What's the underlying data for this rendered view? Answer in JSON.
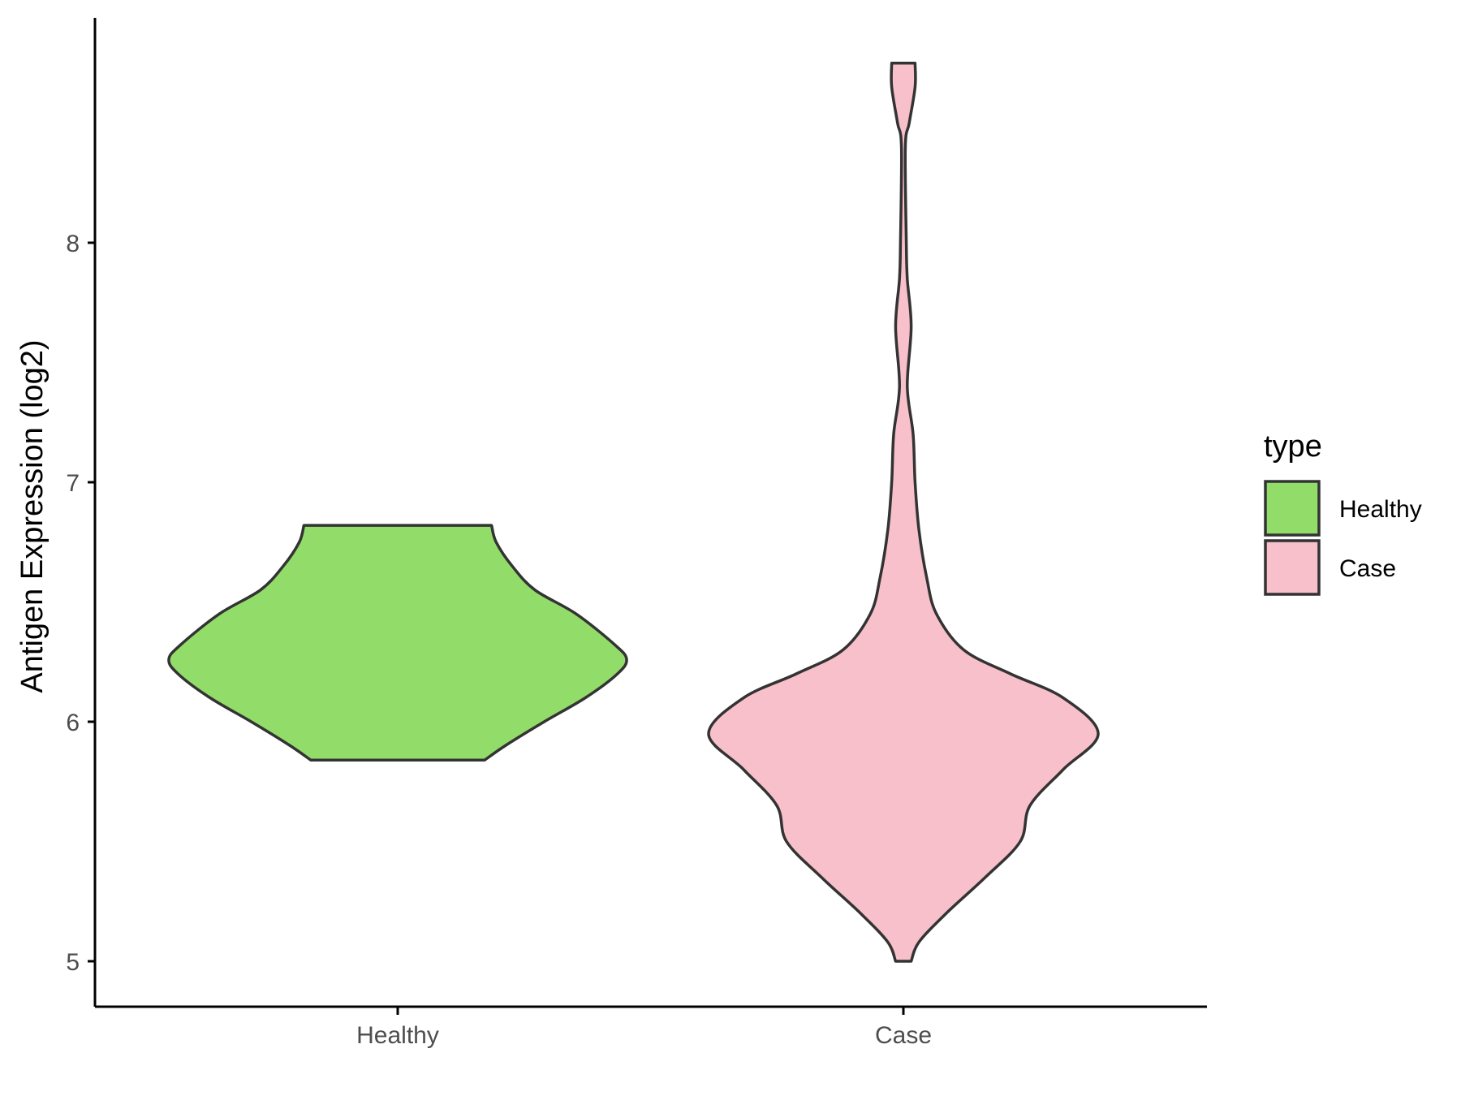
{
  "chart_data": {
    "type": "violin",
    "title": "",
    "xlabel": "",
    "ylabel": "Antigen Expression (log2)",
    "y_ticks": [
      "5",
      "6",
      "7",
      "8"
    ],
    "ylim": [
      4.8,
      8.95
    ],
    "grid": false,
    "legend": {
      "title": "type",
      "position": "right",
      "entries": [
        "Healthy",
        "Case"
      ]
    },
    "categories": [
      "Healthy",
      "Case"
    ],
    "series": [
      {
        "name": "Healthy",
        "color": "#92dd6a",
        "min": 5.84,
        "max": 6.82,
        "density_profile": [
          [
            5.84,
            0.38
          ],
          [
            5.9,
            0.47
          ],
          [
            6.0,
            0.64
          ],
          [
            6.1,
            0.82
          ],
          [
            6.2,
            0.96
          ],
          [
            6.26,
            1.0
          ],
          [
            6.32,
            0.95
          ],
          [
            6.45,
            0.78
          ],
          [
            6.55,
            0.6
          ],
          [
            6.65,
            0.5
          ],
          [
            6.75,
            0.43
          ],
          [
            6.82,
            0.41
          ]
        ]
      },
      {
        "name": "Case",
        "color": "#f8c0cb",
        "min": 5.0,
        "max": 8.75,
        "density_profile": [
          [
            5.0,
            0.04
          ],
          [
            5.08,
            0.08
          ],
          [
            5.2,
            0.22
          ],
          [
            5.35,
            0.42
          ],
          [
            5.5,
            0.6
          ],
          [
            5.65,
            0.65
          ],
          [
            5.8,
            0.82
          ],
          [
            5.95,
            1.0
          ],
          [
            6.1,
            0.82
          ],
          [
            6.2,
            0.55
          ],
          [
            6.3,
            0.31
          ],
          [
            6.45,
            0.17
          ],
          [
            6.6,
            0.12
          ],
          [
            6.8,
            0.08
          ],
          [
            7.0,
            0.06
          ],
          [
            7.2,
            0.05
          ],
          [
            7.4,
            0.02
          ],
          [
            7.65,
            0.04
          ],
          [
            7.85,
            0.02
          ],
          [
            8.0,
            0.015
          ],
          [
            8.4,
            0.01
          ],
          [
            8.5,
            0.03
          ],
          [
            8.65,
            0.06
          ],
          [
            8.75,
            0.06
          ]
        ]
      }
    ]
  }
}
